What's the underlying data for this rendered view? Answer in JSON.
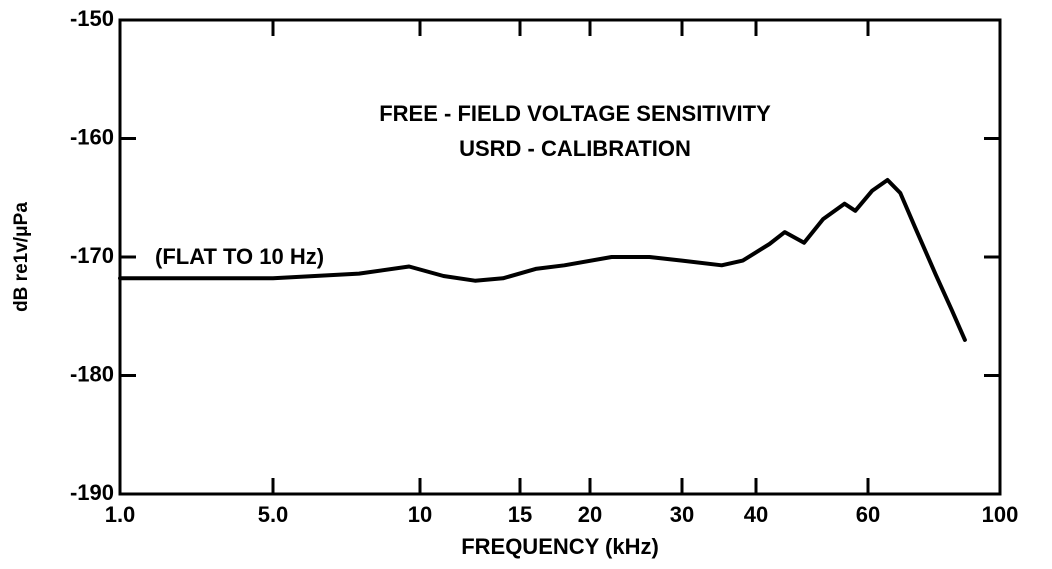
{
  "chart_data": {
    "type": "line",
    "title": [
      "FREE - FIELD VOLTAGE SENSITIVITY",
      "USRD - CALIBRATION"
    ],
    "annotation": "(FLAT TO 10 Hz)",
    "x_label": "FREQUENCY (kHz)",
    "y_label": "dB re1v/μPa",
    "x_scale": "log",
    "xlim": [
      1,
      100
    ],
    "xticks": [
      {
        "value": 1,
        "label": "1.0"
      },
      {
        "value": 5,
        "label": "5.0"
      },
      10,
      15,
      20,
      30,
      40,
      60,
      100
    ],
    "ylim": [
      -190,
      -150
    ],
    "yticks": [
      -190,
      -180,
      -170,
      -160,
      -150
    ],
    "series": [
      {
        "name": "Free-field voltage sensitivity",
        "color": "#000000",
        "x": [
          1,
          5,
          7.5,
          9.5,
          11,
          12.5,
          14,
          16,
          18,
          22,
          26,
          30,
          35,
          38,
          42,
          44.4,
          47.6,
          51,
          55.1,
          57.3,
          61,
          64.7,
          68,
          72,
          78,
          83,
          87.3
        ],
        "values": [
          -171.8,
          -171.8,
          -171.4,
          -170.8,
          -171.6,
          -172.0,
          -171.8,
          -171.0,
          -170.7,
          -170.0,
          -170.0,
          -170.3,
          -170.7,
          -170.3,
          -168.9,
          -167.9,
          -168.8,
          -166.8,
          -165.5,
          -166.1,
          -164.4,
          -163.5,
          -164.6,
          -167.5,
          -171.5,
          -174.5,
          -177.0
        ]
      }
    ]
  }
}
